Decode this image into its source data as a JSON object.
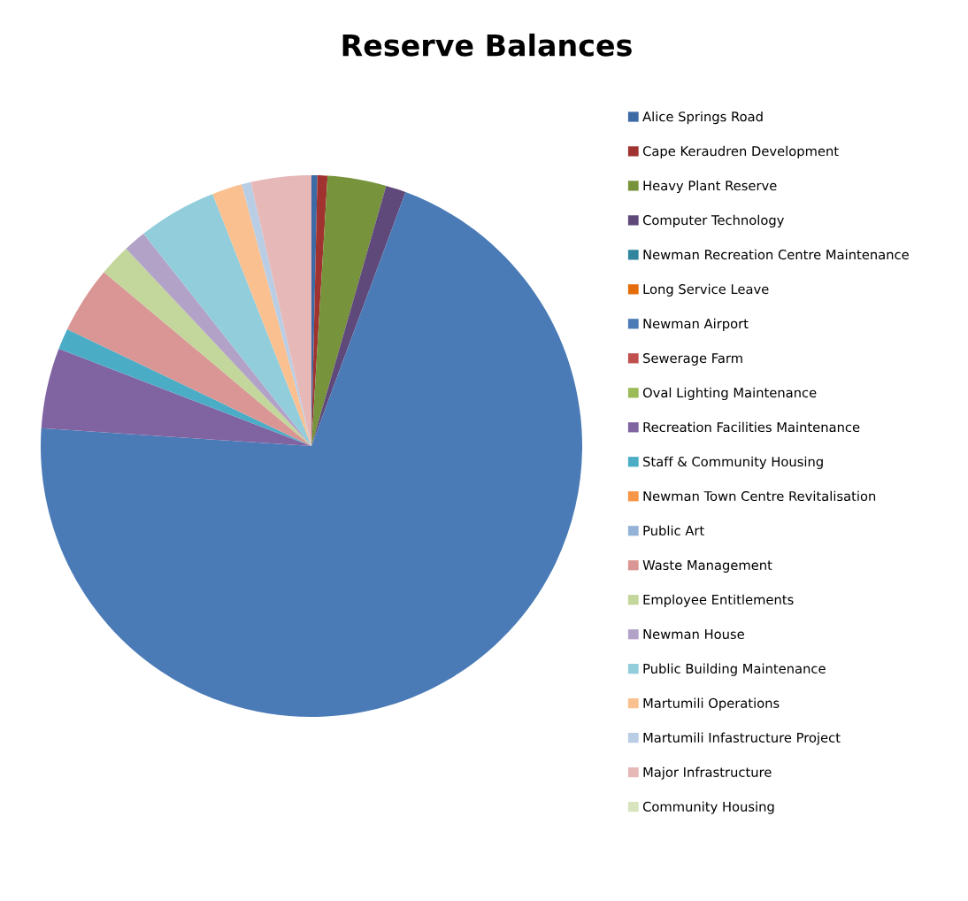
{
  "chart_data": {
    "type": "pie",
    "title": "Reserve Balances",
    "categories": [
      "Alice Springs Road",
      "Cape Keraudren Development",
      "Heavy Plant Reserve",
      "Computer Technology",
      "Newman Recreation Centre Maintenance",
      "Long Service Leave",
      "Newman Airport",
      "Sewerage Farm",
      "Oval Lighting Maintenance",
      "Recreation Facilities Maintenance",
      "Staff & Community Housing",
      "Newman Town Centre Revitalisation",
      "Public Art",
      "Waste Management",
      "Employee Entitlements",
      "Newman House",
      "Public Building Maintenance",
      "Martumili Operations",
      "Martumili Infastructure Project",
      "Major Infrastructure",
      "Community Housing"
    ],
    "values": [
      0.35,
      0.6,
      3.5,
      1.2,
      0,
      0,
      70.4,
      0,
      0,
      4.8,
      1.25,
      0,
      0,
      4.0,
      1.9,
      1.35,
      4.7,
      1.8,
      0.55,
      3.6,
      0
    ],
    "colors": [
      "#3c6aa5",
      "#a0332f",
      "#77933c",
      "#5f497a",
      "#31859c",
      "#e46c0a",
      "#4a7bb7",
      "#c0504d",
      "#9bbb59",
      "#8064a2",
      "#4bacc6",
      "#f79646",
      "#95b3d7",
      "#d99694",
      "#c3d69b",
      "#b3a2c7",
      "#92cddc",
      "#fac08f",
      "#b9cde5",
      "#e6b9b8",
      "#d7e4bd"
    ],
    "legend": "right"
  }
}
